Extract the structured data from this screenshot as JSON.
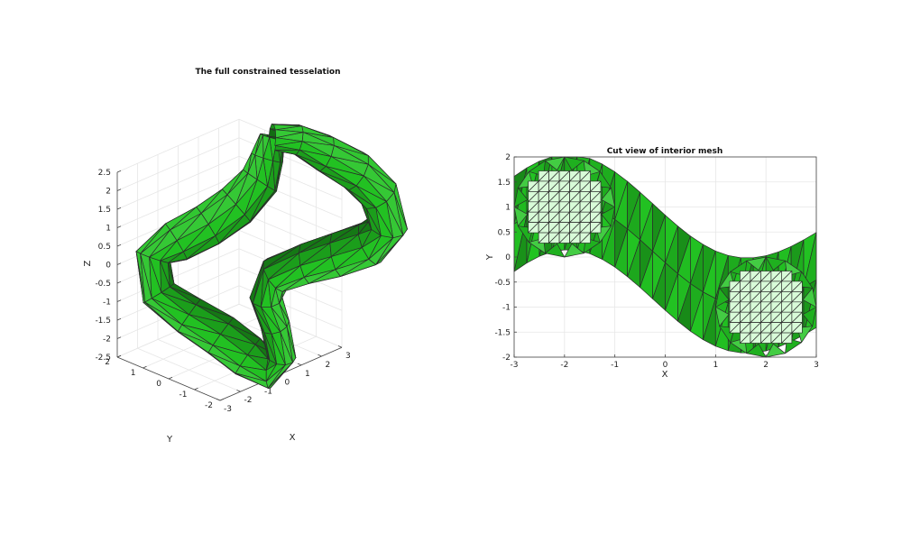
{
  "chart_data": [
    {
      "type": "surface3d",
      "title": "The full constrained tesselation",
      "xlabel": "X",
      "ylabel": "Y",
      "zlabel": "Z",
      "xlim": [
        -3,
        3
      ],
      "ylim": [
        -2,
        2
      ],
      "zlim": [
        -2.5,
        2.5
      ],
      "xticks": [
        "-3",
        "-2",
        "-1",
        "0",
        "1",
        "2",
        "3"
      ],
      "yticks": [
        "-2",
        "-1",
        "0",
        "1",
        "2"
      ],
      "zticks": [
        "2.5",
        "2",
        "1.5",
        "1",
        "0.5",
        "0",
        "-0.5",
        "-1",
        "-1.5",
        "-2",
        "-2.5"
      ],
      "grid": true,
      "colors": {
        "face": "#22c322",
        "dark": "#0b6a0b",
        "light": "#7cf27c",
        "edge": "#2b2b2b"
      }
    },
    {
      "type": "mesh2d",
      "title": "Cut view of interior mesh",
      "xlabel": "X",
      "ylabel": "Y",
      "xlim": [
        -3,
        3
      ],
      "ylim": [
        -2,
        2
      ],
      "xticks": [
        "-3",
        "-2",
        "-1",
        "0",
        "1",
        "2",
        "3"
      ],
      "yticks": [
        "2",
        "1.5",
        "1",
        "0.5",
        "0",
        "-0.5",
        "-1",
        "-1.5",
        "-2"
      ],
      "grid": true,
      "cut_circles": [
        {
          "cx": -2,
          "cy": 1,
          "r": 1
        },
        {
          "cx": 2,
          "cy": -1,
          "r": 1
        }
      ],
      "colors": {
        "face": "#22c322",
        "dark": "#0b6a0b",
        "cut": "#d8fbd8",
        "edge": "#2b2b2b"
      }
    }
  ]
}
